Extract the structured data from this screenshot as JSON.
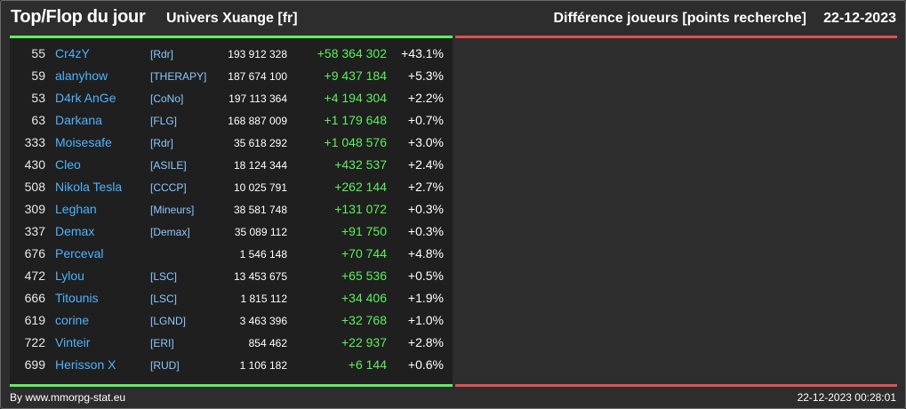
{
  "header": {
    "title": "Top/Flop du jour",
    "universe": "Univers Xuange [fr]",
    "metric": "Différence joueurs [points recherche]",
    "date": "22-12-2023"
  },
  "colors": {
    "background": "#2d2d2d",
    "panel": "#1f1f1f",
    "top_accent": "#5cf05c",
    "flop_accent": "#e05050",
    "player_name": "#4db3ff",
    "alliance": "#8cc8ff",
    "positive_diff": "#5cf05c"
  },
  "top": [
    {
      "rank": "55",
      "name": "Cr4zY",
      "alliance": "[Rdr]",
      "score": "193 912 328",
      "diff": "+58 364 302",
      "pct": "+43.1%"
    },
    {
      "rank": "59",
      "name": "alanyhow",
      "alliance": "[THERAPY]",
      "score": "187 674 100",
      "diff": "+9 437 184",
      "pct": "+5.3%"
    },
    {
      "rank": "53",
      "name": "D4rk AnGe",
      "alliance": "[CoNo]",
      "score": "197 113 364",
      "diff": "+4 194 304",
      "pct": "+2.2%"
    },
    {
      "rank": "63",
      "name": "Darkana",
      "alliance": "[FLG]",
      "score": "168 887 009",
      "diff": "+1 179 648",
      "pct": "+0.7%"
    },
    {
      "rank": "333",
      "name": "Moisesafe",
      "alliance": "[Rdr]",
      "score": "35 618 292",
      "diff": "+1 048 576",
      "pct": "+3.0%"
    },
    {
      "rank": "430",
      "name": "Cleo",
      "alliance": "[ASILE]",
      "score": "18 124 344",
      "diff": "+432 537",
      "pct": "+2.4%"
    },
    {
      "rank": "508",
      "name": "Nikola Tesla",
      "alliance": "[CCCP]",
      "score": "10 025 791",
      "diff": "+262 144",
      "pct": "+2.7%"
    },
    {
      "rank": "309",
      "name": "Leghan",
      "alliance": "[Mineurs]",
      "score": "38 581 748",
      "diff": "+131 072",
      "pct": "+0.3%"
    },
    {
      "rank": "337",
      "name": "Demax",
      "alliance": "[Demax]",
      "score": "35 089 112",
      "diff": "+91 750",
      "pct": "+0.3%"
    },
    {
      "rank": "676",
      "name": "Perceval",
      "alliance": "",
      "score": "1 546 148",
      "diff": "+70 744",
      "pct": "+4.8%"
    },
    {
      "rank": "472",
      "name": "Lylou",
      "alliance": "[LSC]",
      "score": "13 453 675",
      "diff": "+65 536",
      "pct": "+0.5%"
    },
    {
      "rank": "666",
      "name": "Titounis",
      "alliance": "[LSC]",
      "score": "1 815 112",
      "diff": "+34 406",
      "pct": "+1.9%"
    },
    {
      "rank": "619",
      "name": "corine",
      "alliance": "[LGND]",
      "score": "3 463 396",
      "diff": "+32 768",
      "pct": "+1.0%"
    },
    {
      "rank": "722",
      "name": "Vinteir",
      "alliance": "[ERI]",
      "score": "854 462",
      "diff": "+22 937",
      "pct": "+2.8%"
    },
    {
      "rank": "699",
      "name": "Herisson X",
      "alliance": "[RUD]",
      "score": "1 106 182",
      "diff": "+6 144",
      "pct": "+0.6%"
    }
  ],
  "footer": {
    "credit": "By www.mmorpg-stat.eu",
    "timestamp": "22-12-2023 00:28:01"
  }
}
